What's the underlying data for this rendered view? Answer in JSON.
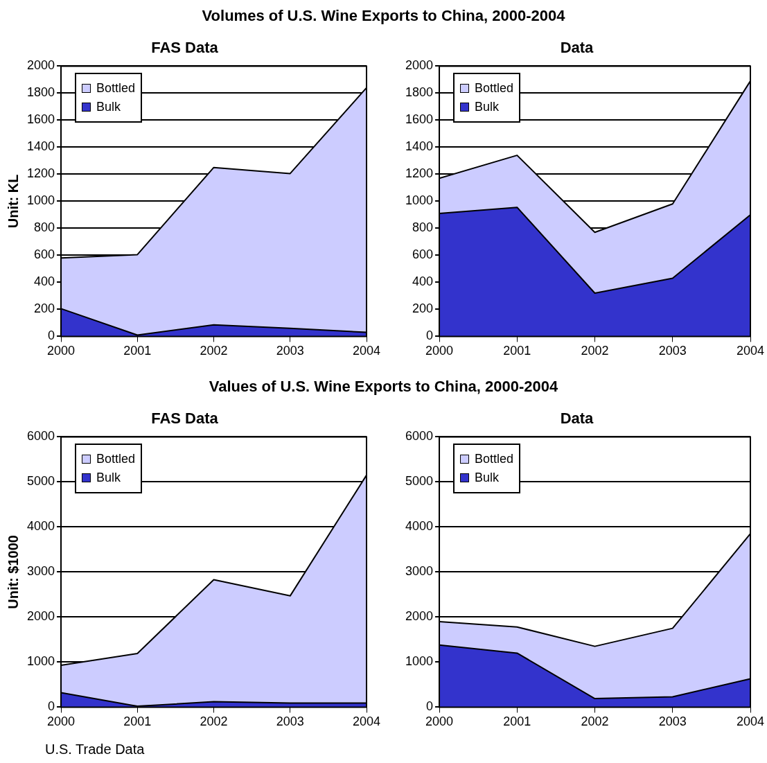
{
  "chart_data": [
    {
      "type": "area",
      "title": "Volumes of U.S. Wine Exports to China, 2000-2004",
      "subtitle": "FAS Data",
      "ylabel": "Unit: KL",
      "categories": [
        "2000",
        "2001",
        "2002",
        "2003",
        "2004"
      ],
      "stacked": true,
      "ylim": [
        0,
        2000
      ],
      "yticks": [
        0,
        200,
        400,
        600,
        800,
        1000,
        1200,
        1400,
        1600,
        1800,
        2000
      ],
      "grid": "y",
      "legend": "top left",
      "series": [
        {
          "name": "Bulk",
          "color": "#3333cc",
          "values": [
            205,
            10,
            85,
            60,
            30
          ]
        },
        {
          "name": "Bottled",
          "color": "#ccccff",
          "values": [
            375,
            595,
            1165,
            1145,
            1810
          ]
        }
      ]
    },
    {
      "type": "area",
      "subtitle": "Data",
      "categories": [
        "2000",
        "2001",
        "2002",
        "2003",
        "2004"
      ],
      "stacked": true,
      "ylim": [
        0,
        2000
      ],
      "yticks": [
        0,
        200,
        400,
        600,
        800,
        1000,
        1200,
        1400,
        1600,
        1800,
        2000
      ],
      "grid": "y",
      "legend": "top left",
      "series": [
        {
          "name": "Bulk",
          "color": "#3333cc",
          "values": [
            910,
            955,
            320,
            430,
            900
          ]
        },
        {
          "name": "Bottled",
          "color": "#ccccff",
          "values": [
            260,
            385,
            450,
            550,
            990
          ]
        }
      ]
    },
    {
      "type": "area",
      "title": "Values of U.S. Wine Exports to China, 2000-2004",
      "subtitle": "FAS Data",
      "ylabel": "Unit: $1000",
      "categories": [
        "2000",
        "2001",
        "2002",
        "2003",
        "2004"
      ],
      "stacked": true,
      "ylim": [
        0,
        6000
      ],
      "yticks": [
        0,
        1000,
        2000,
        3000,
        4000,
        5000,
        6000
      ],
      "grid": "y",
      "legend": "top left",
      "annotations": [
        "U.S. Trade Data"
      ],
      "series": [
        {
          "name": "Bulk",
          "color": "#3333cc",
          "values": [
            320,
            20,
            120,
            90,
            90
          ]
        },
        {
          "name": "Bottled",
          "color": "#ccccff",
          "values": [
            610,
            1170,
            2710,
            2380,
            5060
          ]
        }
      ]
    },
    {
      "type": "area",
      "subtitle": "Data",
      "categories": [
        "2000",
        "2001",
        "2002",
        "2003",
        "2004"
      ],
      "stacked": true,
      "ylim": [
        0,
        6000
      ],
      "yticks": [
        0,
        1000,
        2000,
        3000,
        4000,
        5000,
        6000
      ],
      "grid": "y",
      "legend": "top left",
      "series": [
        {
          "name": "Bulk",
          "color": "#3333cc",
          "values": [
            1380,
            1200,
            190,
            230,
            630
          ]
        },
        {
          "name": "Bottled",
          "color": "#ccccff",
          "values": [
            520,
            580,
            1160,
            1520,
            3220
          ]
        }
      ]
    }
  ]
}
